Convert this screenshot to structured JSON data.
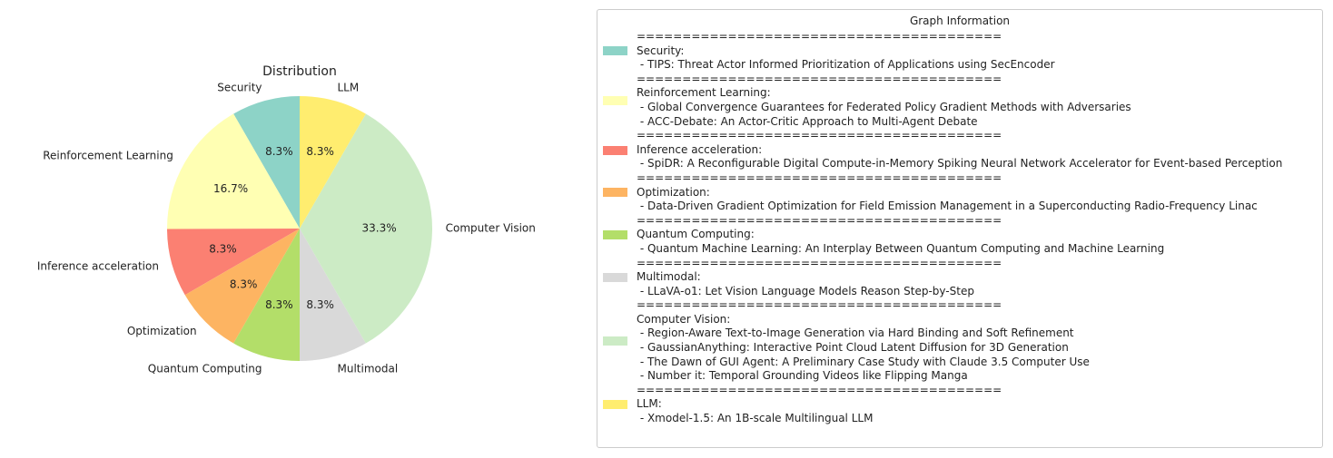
{
  "chart_data": {
    "type": "pie",
    "title": "Distribution",
    "slices": [
      {
        "label": "Security",
        "value": 8.3,
        "pct_label": "8.3%",
        "color": "#8dd3c7"
      },
      {
        "label": "Reinforcement Learning",
        "value": 16.7,
        "pct_label": "16.7%",
        "color": "#ffffb3"
      },
      {
        "label": "Inference acceleration",
        "value": 8.3,
        "pct_label": "8.3%",
        "color": "#fb8072"
      },
      {
        "label": "Optimization",
        "value": 8.3,
        "pct_label": "8.3%",
        "color": "#fdb462"
      },
      {
        "label": "Quantum Computing",
        "value": 8.3,
        "pct_label": "8.3%",
        "color": "#b3de69"
      },
      {
        "label": "Multimodal",
        "value": 8.3,
        "pct_label": "8.3%",
        "color": "#d9d9d9"
      },
      {
        "label": "Computer Vision",
        "value": 33.3,
        "pct_label": "33.3%",
        "color": "#ccebc5"
      },
      {
        "label": "LLM",
        "value": 8.3,
        "pct_label": "8.3%",
        "color": "#ffed6f"
      }
    ],
    "legend_placement": "right"
  },
  "legend": {
    "title": "Graph Information",
    "separator": "========================================",
    "entries": [
      {
        "heading": "Security:",
        "items": [
          " - TIPS: Threat Actor Informed Prioritization of Applications using SecEncoder"
        ]
      },
      {
        "heading": "Reinforcement Learning:",
        "items": [
          " - Global Convergence Guarantees for Federated Policy Gradient Methods with Adversaries",
          " - ACC-Debate: An Actor-Critic Approach to Multi-Agent Debate"
        ]
      },
      {
        "heading": "Inference acceleration:",
        "items": [
          " - SpiDR: A Reconfigurable Digital Compute-in-Memory Spiking Neural Network Accelerator for Event-based Perception"
        ]
      },
      {
        "heading": "Optimization:",
        "items": [
          " - Data-Driven Gradient Optimization for Field Emission Management in a Superconducting Radio-Frequency Linac"
        ]
      },
      {
        "heading": "Quantum Computing:",
        "items": [
          " - Quantum Machine Learning: An Interplay Between Quantum Computing and Machine Learning"
        ]
      },
      {
        "heading": "Multimodal:",
        "items": [
          " - LLaVA-o1: Let Vision Language Models Reason Step-by-Step"
        ]
      },
      {
        "heading": "Computer Vision:",
        "items": [
          " - Region-Aware Text-to-Image Generation via Hard Binding and Soft Refinement",
          " - GaussianAnything: Interactive Point Cloud Latent Diffusion for 3D Generation",
          " - The Dawn of GUI Agent: A Preliminary Case Study with Claude 3.5 Computer Use",
          " - Number it: Temporal Grounding Videos like Flipping Manga"
        ]
      },
      {
        "heading": "LLM:",
        "items": [
          " - Xmodel-1.5: An 1B-scale Multilingual LLM"
        ]
      }
    ]
  }
}
